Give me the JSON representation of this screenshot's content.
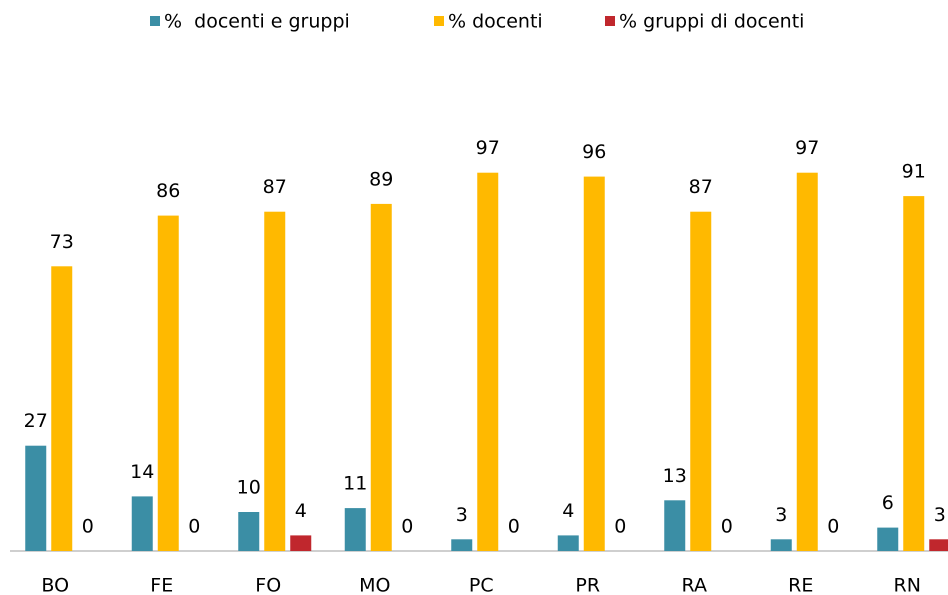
{
  "chart_data": {
    "type": "bar",
    "categories": [
      "BO",
      "FE",
      "FO",
      "MO",
      "PC",
      "PR",
      "RA",
      "RE",
      "RN"
    ],
    "series": [
      {
        "name": "%  docenti e gruppi",
        "color": "#3b8ea5",
        "values": [
          27,
          14,
          10,
          11,
          3,
          4,
          13,
          3,
          6
        ]
      },
      {
        "name": "% docenti",
        "color": "#ffb900",
        "values": [
          73,
          86,
          87,
          89,
          97,
          96,
          87,
          97,
          91
        ]
      },
      {
        "name": "% gruppi di docenti",
        "color": "#c0272d",
        "values": [
          0,
          0,
          4,
          0,
          0,
          0,
          0,
          0,
          3
        ]
      }
    ],
    "legend": "top"
  }
}
